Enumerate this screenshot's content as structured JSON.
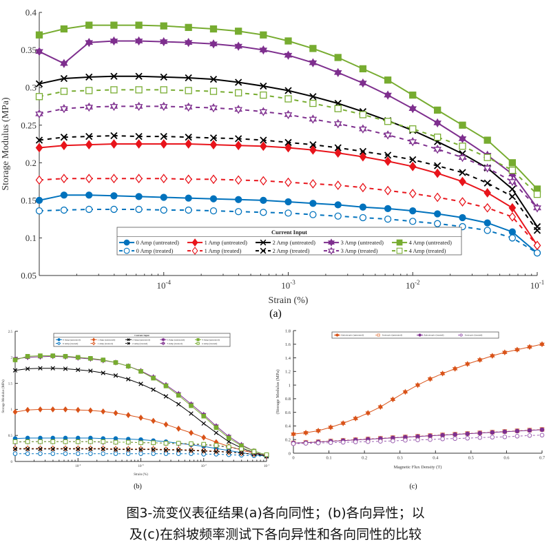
{
  "figure": {
    "panel_a": "(a)",
    "panel_b": "(b)",
    "panel_c": "(c)",
    "caption_line1": "图3-流变仪表征结果(a)各向同性；(b)各向异性；以",
    "caption_line2": "及(c)在斜坡频率测试下各向异性和各向同性的比较"
  },
  "chart_data": [
    {
      "id": "a",
      "type": "line",
      "xscale": "log",
      "xlim": [
        1e-05,
        0.1
      ],
      "ylim": [
        0.05,
        0.4
      ],
      "xlabel": "Strain (%)",
      "ylabel": "Storage Modulus (MPa)",
      "yticks": [
        "0.05",
        "0.1",
        "0.15",
        "0.2",
        "0.25",
        "0.3",
        "0.35",
        "0.4"
      ],
      "xticks": [
        "10^-4",
        "10^-3",
        "10^-2",
        "10^-1"
      ],
      "legend_title": "Current Input",
      "legend_position": "bottom-center",
      "x": [
        1e-05,
        1.58e-05,
        2.51e-05,
        3.98e-05,
        6.31e-05,
        0.0001,
        0.000158,
        0.000251,
        0.000398,
        0.000631,
        0.001,
        0.00158,
        0.00251,
        0.00398,
        0.00631,
        0.01,
        0.0158,
        0.0251,
        0.0398,
        0.0631,
        0.1
      ],
      "series": [
        {
          "name": "0 Amp (untreated)",
          "color": "#0072BD",
          "marker": "circle",
          "filled": true,
          "dashed": false,
          "values": [
            0.15,
            0.157,
            0.157,
            0.156,
            0.155,
            0.154,
            0.153,
            0.152,
            0.151,
            0.15,
            0.148,
            0.146,
            0.144,
            0.141,
            0.139,
            0.136,
            0.132,
            0.127,
            0.12,
            0.108,
            0.08
          ]
        },
        {
          "name": "1 Amp (untreated)",
          "color": "#E8141B",
          "marker": "diamond",
          "filled": true,
          "dashed": false,
          "values": [
            0.22,
            0.223,
            0.224,
            0.225,
            0.225,
            0.225,
            0.225,
            0.224,
            0.223,
            0.222,
            0.22,
            0.217,
            0.213,
            0.208,
            0.202,
            0.195,
            0.186,
            0.175,
            0.16,
            0.14,
            0.09
          ]
        },
        {
          "name": "2 Amp (untreated)",
          "color": "#000000",
          "marker": "x",
          "filled": true,
          "dashed": false,
          "values": [
            0.305,
            0.312,
            0.314,
            0.315,
            0.315,
            0.314,
            0.313,
            0.311,
            0.307,
            0.302,
            0.296,
            0.288,
            0.279,
            0.268,
            0.256,
            0.243,
            0.228,
            0.212,
            0.193,
            0.165,
            0.115
          ]
        },
        {
          "name": "3 Amp (untreated)",
          "color": "#7E2F8E",
          "marker": "star",
          "filled": true,
          "dashed": false,
          "values": [
            0.348,
            0.332,
            0.36,
            0.362,
            0.362,
            0.361,
            0.36,
            0.358,
            0.355,
            0.35,
            0.343,
            0.333,
            0.32,
            0.306,
            0.29,
            0.272,
            0.253,
            0.232,
            0.21,
            0.185,
            0.14
          ]
        },
        {
          "name": "4 Amp (untreated)",
          "color": "#77AC30",
          "marker": "square",
          "filled": true,
          "dashed": false,
          "values": [
            0.37,
            0.378,
            0.383,
            0.383,
            0.383,
            0.382,
            0.38,
            0.378,
            0.375,
            0.37,
            0.362,
            0.352,
            0.34,
            0.325,
            0.31,
            0.29,
            0.27,
            0.25,
            0.23,
            0.2,
            0.165
          ]
        },
        {
          "name": "0 Amp (treated)",
          "color": "#0072BD",
          "marker": "circle",
          "filled": false,
          "dashed": true,
          "values": [
            0.136,
            0.137,
            0.138,
            0.138,
            0.138,
            0.137,
            0.137,
            0.136,
            0.135,
            0.134,
            0.133,
            0.131,
            0.129,
            0.127,
            0.125,
            0.122,
            0.119,
            0.115,
            0.11,
            0.1,
            0.08
          ]
        },
        {
          "name": "1 Amp (treated)",
          "color": "#E8141B",
          "marker": "diamond",
          "filled": false,
          "dashed": true,
          "values": [
            0.177,
            0.179,
            0.179,
            0.179,
            0.179,
            0.179,
            0.178,
            0.178,
            0.177,
            0.176,
            0.174,
            0.172,
            0.17,
            0.167,
            0.163,
            0.159,
            0.154,
            0.148,
            0.14,
            0.128,
            0.09
          ]
        },
        {
          "name": "2 Amp (treated)",
          "color": "#000000",
          "marker": "x",
          "filled": false,
          "dashed": true,
          "values": [
            0.23,
            0.234,
            0.235,
            0.236,
            0.235,
            0.235,
            0.234,
            0.233,
            0.232,
            0.23,
            0.227,
            0.224,
            0.22,
            0.215,
            0.21,
            0.204,
            0.196,
            0.187,
            0.173,
            0.155,
            0.11
          ]
        },
        {
          "name": "3 Amp (treated)",
          "color": "#7E2F8E",
          "marker": "star",
          "filled": false,
          "dashed": true,
          "values": [
            0.265,
            0.272,
            0.274,
            0.275,
            0.275,
            0.275,
            0.274,
            0.273,
            0.271,
            0.268,
            0.264,
            0.258,
            0.252,
            0.245,
            0.237,
            0.228,
            0.218,
            0.207,
            0.193,
            0.175,
            0.14
          ]
        },
        {
          "name": "4 Amp (treated)",
          "color": "#77AC30",
          "marker": "square",
          "filled": false,
          "dashed": true,
          "values": [
            0.288,
            0.295,
            0.296,
            0.297,
            0.297,
            0.297,
            0.296,
            0.295,
            0.293,
            0.29,
            0.285,
            0.279,
            0.272,
            0.264,
            0.255,
            0.245,
            0.234,
            0.222,
            0.207,
            0.19,
            0.158
          ]
        }
      ]
    },
    {
      "id": "b",
      "type": "line",
      "xscale": "log",
      "xlim": [
        1e-05,
        0.1
      ],
      "ylim": [
        0,
        2.5
      ],
      "xlabel": "Strain (%)",
      "ylabel": "Storage Modulus (MPa)",
      "yticks": [
        "0",
        "0.5",
        "1",
        "1.5",
        "2",
        "2.5"
      ],
      "xticks": [
        "10^-4",
        "10^-3",
        "10^-2",
        "10^-1"
      ],
      "legend_title": "Current Input",
      "legend_position": "top-center",
      "x": [
        1e-05,
        1.58e-05,
        2.51e-05,
        3.98e-05,
        6.31e-05,
        0.0001,
        0.000158,
        0.000251,
        0.000398,
        0.000631,
        0.001,
        0.00158,
        0.00251,
        0.00398,
        0.00631,
        0.01,
        0.0158,
        0.0251,
        0.0398,
        0.0631,
        0.1
      ],
      "series": [
        {
          "name": "0 Amp (untreated)",
          "color": "#0072BD",
          "marker": "circle",
          "filled": true,
          "dashed": false,
          "values": [
            0.44,
            0.45,
            0.45,
            0.45,
            0.45,
            0.45,
            0.45,
            0.44,
            0.44,
            0.43,
            0.42,
            0.4,
            0.38,
            0.35,
            0.32,
            0.29,
            0.25,
            0.21,
            0.17,
            0.13,
            0.1
          ]
        },
        {
          "name": "1 Amp (untreated)",
          "color": "#D95319",
          "marker": "diamond",
          "filled": true,
          "dashed": false,
          "values": [
            0.95,
            0.99,
            1.0,
            1.0,
            1.0,
            0.99,
            0.98,
            0.96,
            0.93,
            0.89,
            0.84,
            0.78,
            0.71,
            0.63,
            0.55,
            0.46,
            0.37,
            0.29,
            0.22,
            0.16,
            0.1
          ]
        },
        {
          "name": "2 Amp (untreated)",
          "color": "#000000",
          "marker": "x",
          "filled": true,
          "dashed": false,
          "values": [
            1.75,
            1.78,
            1.79,
            1.79,
            1.78,
            1.76,
            1.74,
            1.7,
            1.65,
            1.58,
            1.49,
            1.38,
            1.25,
            1.1,
            0.92,
            0.73,
            0.55,
            0.38,
            0.26,
            0.17,
            0.1
          ]
        },
        {
          "name": "3 Amp (untreated)",
          "color": "#7E2F8E",
          "marker": "star",
          "filled": true,
          "dashed": false,
          "values": [
            1.97,
            2.0,
            2.01,
            2.02,
            2.01,
            1.99,
            1.97,
            1.94,
            1.9,
            1.83,
            1.74,
            1.62,
            1.47,
            1.3,
            1.1,
            0.9,
            0.68,
            0.48,
            0.32,
            0.2,
            0.12
          ]
        },
        {
          "name": "4 Amp (untreated)",
          "color": "#77AC30",
          "marker": "square",
          "filled": true,
          "dashed": false,
          "values": [
            1.95,
            2.02,
            2.03,
            2.03,
            2.02,
            2.0,
            1.98,
            1.95,
            1.9,
            1.83,
            1.73,
            1.6,
            1.45,
            1.27,
            1.07,
            0.87,
            0.65,
            0.45,
            0.3,
            0.2,
            0.12
          ]
        },
        {
          "name": "0 Amp (treated)",
          "color": "#0072BD",
          "marker": "circle",
          "filled": false,
          "dashed": true,
          "values": [
            0.15,
            0.15,
            0.15,
            0.15,
            0.15,
            0.15,
            0.15,
            0.15,
            0.15,
            0.15,
            0.15,
            0.15,
            0.15,
            0.15,
            0.15,
            0.14,
            0.14,
            0.13,
            0.12,
            0.11,
            0.1
          ]
        },
        {
          "name": "1 Amp (treated)",
          "color": "#D95319",
          "marker": "diamond",
          "filled": false,
          "dashed": true,
          "values": [
            0.25,
            0.25,
            0.25,
            0.25,
            0.25,
            0.25,
            0.25,
            0.25,
            0.24,
            0.24,
            0.24,
            0.24,
            0.23,
            0.23,
            0.22,
            0.21,
            0.2,
            0.18,
            0.16,
            0.14,
            0.11
          ]
        },
        {
          "name": "2 Amp (treated)",
          "color": "#000000",
          "marker": "x",
          "filled": false,
          "dashed": true,
          "values": [
            0.24,
            0.24,
            0.24,
            0.24,
            0.24,
            0.24,
            0.24,
            0.24,
            0.23,
            0.23,
            0.23,
            0.23,
            0.22,
            0.22,
            0.21,
            0.2,
            0.19,
            0.18,
            0.16,
            0.14,
            0.1
          ]
        },
        {
          "name": "3 Amp (treated)",
          "color": "#7E2F8E",
          "marker": "star",
          "filled": false,
          "dashed": true,
          "values": [
            0.37,
            0.38,
            0.38,
            0.38,
            0.38,
            0.38,
            0.38,
            0.37,
            0.37,
            0.37,
            0.36,
            0.36,
            0.35,
            0.34,
            0.33,
            0.32,
            0.3,
            0.27,
            0.23,
            0.18,
            0.12
          ]
        },
        {
          "name": "4 Amp (treated)",
          "color": "#77AC30",
          "marker": "square",
          "filled": false,
          "dashed": true,
          "values": [
            0.38,
            0.38,
            0.38,
            0.38,
            0.38,
            0.38,
            0.38,
            0.38,
            0.37,
            0.37,
            0.36,
            0.36,
            0.35,
            0.35,
            0.34,
            0.33,
            0.31,
            0.28,
            0.24,
            0.19,
            0.13
          ]
        }
      ]
    },
    {
      "id": "c",
      "type": "line",
      "xscale": "linear",
      "xlim": [
        0,
        0.7
      ],
      "ylim": [
        0,
        1.8
      ],
      "xlabel": "Magnetic Flux Density (T)",
      "ylabel": "(Storage Modulus (MPa)",
      "yticks": [
        "0",
        "0.2",
        "0.4",
        "0.6",
        "0.8",
        "1",
        "1.2",
        "1.4",
        "1.6",
        "1.8"
      ],
      "xticks": [
        "0",
        "0.1",
        "0.2",
        "0.3",
        "0.4",
        "0.5",
        "0.6",
        "0.7"
      ],
      "legend_position": "top-center",
      "x": [
        0,
        0.035,
        0.07,
        0.105,
        0.14,
        0.175,
        0.21,
        0.245,
        0.28,
        0.315,
        0.35,
        0.385,
        0.42,
        0.455,
        0.49,
        0.525,
        0.56,
        0.595,
        0.63,
        0.665,
        0.7
      ],
      "series": [
        {
          "name": "Anisotropic (untreated)",
          "color": "#D95319",
          "marker": "star",
          "filled": true,
          "dashed": false,
          "values": [
            0.28,
            0.3,
            0.33,
            0.38,
            0.44,
            0.51,
            0.59,
            0.68,
            0.79,
            0.9,
            1.0,
            1.09,
            1.17,
            1.24,
            1.31,
            1.37,
            1.43,
            1.48,
            1.52,
            1.56,
            1.6
          ]
        },
        {
          "name": "Isotropic (untreated)",
          "color": "#E8956A",
          "marker": "square",
          "filled": false,
          "dashed": true,
          "values": [
            0.15,
            0.16,
            0.17,
            0.18,
            0.19,
            0.2,
            0.21,
            0.22,
            0.23,
            0.24,
            0.25,
            0.26,
            0.27,
            0.28,
            0.29,
            0.3,
            0.31,
            0.32,
            0.33,
            0.34,
            0.35
          ]
        },
        {
          "name": "Anisotropic (treated)",
          "color": "#7E2F8E",
          "marker": "circle",
          "filled": true,
          "dashed": false,
          "values": [
            0.15,
            0.155,
            0.165,
            0.175,
            0.185,
            0.195,
            0.205,
            0.215,
            0.225,
            0.235,
            0.245,
            0.255,
            0.265,
            0.275,
            0.285,
            0.295,
            0.305,
            0.315,
            0.325,
            0.335,
            0.345
          ]
        },
        {
          "name": "Isotropic (treated)",
          "color": "#9B5FB0",
          "marker": "circle",
          "filled": false,
          "dashed": true,
          "values": [
            0.14,
            0.145,
            0.15,
            0.155,
            0.16,
            0.165,
            0.17,
            0.175,
            0.18,
            0.19,
            0.195,
            0.2,
            0.21,
            0.215,
            0.22,
            0.23,
            0.235,
            0.24,
            0.25,
            0.26,
            0.265
          ]
        }
      ]
    }
  ]
}
